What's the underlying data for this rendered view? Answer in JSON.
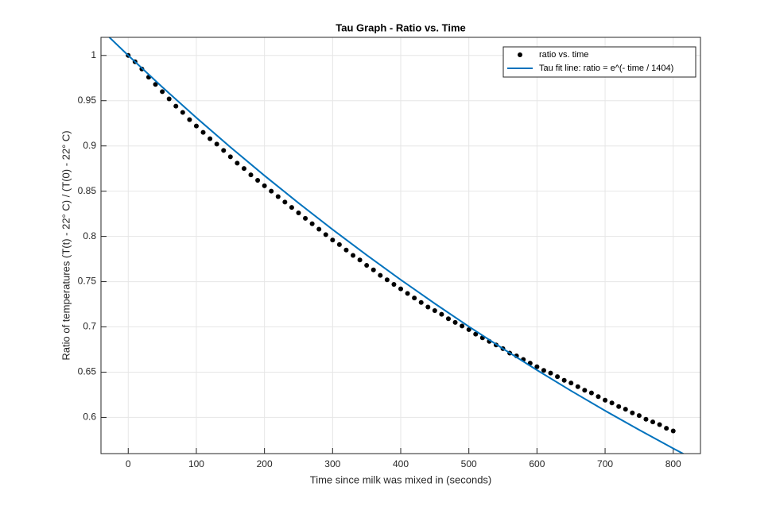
{
  "chart_data": {
    "type": "scatter",
    "title": "Tau Graph - Ratio vs. Time",
    "x_label": "Time since milk was mixed in (seconds)",
    "y_label": "Ratio of temperatures (T(t) - 22° C) / (T(0) - 22° C)",
    "xlim": [
      -40,
      840
    ],
    "ylim": [
      0.56,
      1.02
    ],
    "xticks": [
      0,
      100,
      200,
      300,
      400,
      500,
      600,
      700,
      800
    ],
    "yticks": [
      0.6,
      0.65,
      0.7,
      0.75,
      0.8,
      0.85,
      0.9,
      0.95,
      1
    ],
    "grid": true,
    "legend": "northeast",
    "series": [
      {
        "name": "ratio vs. time",
        "color": "#000000",
        "style": "markers",
        "x": [
          0,
          10,
          20,
          30,
          40,
          50,
          60,
          70,
          80,
          90,
          100,
          110,
          120,
          130,
          140,
          150,
          160,
          170,
          180,
          190,
          200,
          210,
          220,
          230,
          240,
          250,
          260,
          270,
          280,
          290,
          300,
          310,
          320,
          330,
          340,
          350,
          360,
          370,
          380,
          390,
          400,
          410,
          420,
          430,
          440,
          450,
          460,
          470,
          480,
          490,
          500,
          510,
          520,
          530,
          540,
          550,
          560,
          570,
          580,
          590,
          600,
          610,
          620,
          630,
          640,
          650,
          660,
          670,
          680,
          690,
          700,
          710,
          720,
          730,
          740,
          750,
          760,
          770,
          780,
          790,
          800
        ],
        "values": [
          1.0,
          0.993,
          0.985,
          0.976,
          0.968,
          0.96,
          0.952,
          0.944,
          0.937,
          0.929,
          0.922,
          0.915,
          0.908,
          0.902,
          0.895,
          0.888,
          0.881,
          0.875,
          0.868,
          0.862,
          0.856,
          0.85,
          0.844,
          0.838,
          0.832,
          0.826,
          0.82,
          0.814,
          0.808,
          0.802,
          0.796,
          0.791,
          0.785,
          0.779,
          0.774,
          0.768,
          0.763,
          0.757,
          0.752,
          0.747,
          0.742,
          0.737,
          0.732,
          0.727,
          0.722,
          0.718,
          0.714,
          0.709,
          0.705,
          0.701,
          0.697,
          0.692,
          0.688,
          0.684,
          0.68,
          0.676,
          0.671,
          0.668,
          0.664,
          0.66,
          0.656,
          0.652,
          0.649,
          0.645,
          0.641,
          0.638,
          0.634,
          0.63,
          0.627,
          0.623,
          0.619,
          0.616,
          0.612,
          0.609,
          0.605,
          0.602,
          0.598,
          0.595,
          0.592,
          0.588,
          0.585
        ]
      },
      {
        "name": "Tau fit line: ratio = e^(- time / 1404)",
        "color": "#0072BD",
        "style": "line",
        "x": [
          -40,
          0,
          50,
          100,
          150,
          200,
          250,
          300,
          350,
          400,
          450,
          500,
          550,
          600,
          650,
          700,
          750,
          800,
          840
        ],
        "values": [
          1.0289,
          1.0,
          0.965,
          0.9312,
          0.8986,
          0.8672,
          0.8369,
          0.8076,
          0.7794,
          0.7521,
          0.7258,
          0.7004,
          0.676,
          0.6523,
          0.6294,
          0.6074,
          0.5862,
          0.5657,
          0.5498
        ]
      }
    ]
  }
}
